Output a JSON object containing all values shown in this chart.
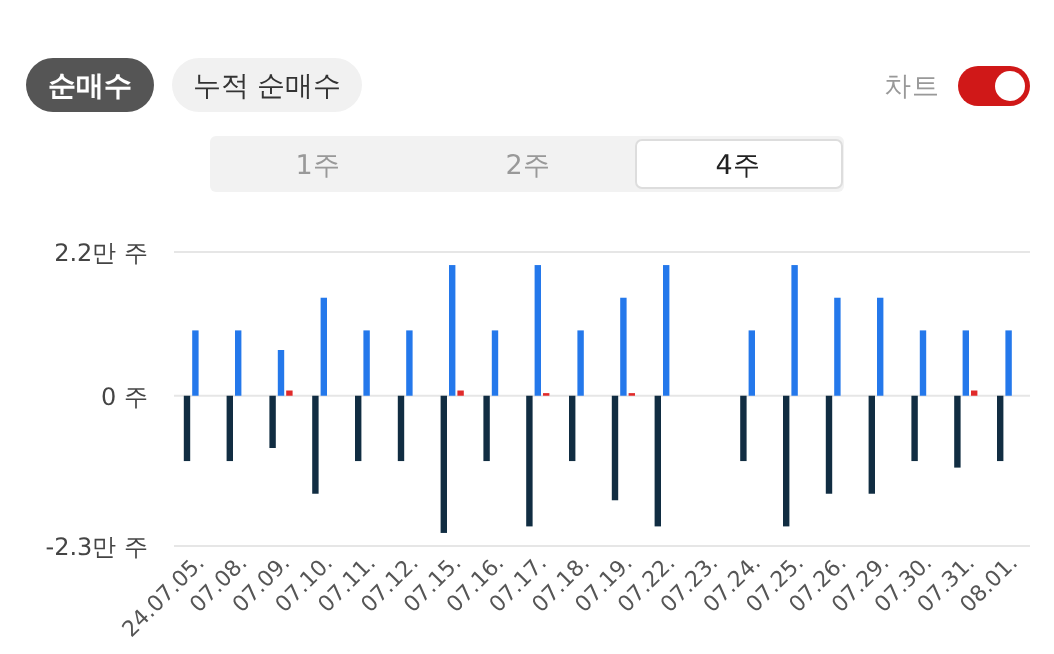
{
  "chart_data": {
    "type": "bar",
    "annotations": [
      "순매수",
      "누적 순매수",
      "차트",
      "1주",
      "2주",
      "4주"
    ],
    "categories": [
      "24.07.05.",
      "07.08.",
      "07.09.",
      "07.10.",
      "07.11.",
      "07.12.",
      "07.15.",
      "07.16.",
      "07.17.",
      "07.18.",
      "07.19.",
      "07.22.",
      "07.23.",
      "07.24.",
      "07.25.",
      "07.26.",
      "07.29.",
      "07.30.",
      "07.31.",
      "08.01."
    ],
    "series": [
      {
        "color": "#112d42",
        "values": [
          -1.0,
          -1.0,
          -0.8,
          -1.5,
          -1.0,
          -1.0,
          -2.1,
          -1.0,
          -2.0,
          -1.0,
          -1.6,
          -2.0,
          0,
          -1.0,
          -2.0,
          -1.5,
          -1.5,
          -1.0,
          -1.1,
          -1.0
        ]
      },
      {
        "color": "#2478eb",
        "values": [
          1.0,
          1.0,
          0.7,
          1.5,
          1.0,
          1.0,
          2.0,
          1.0,
          2.0,
          1.0,
          1.5,
          2.0,
          0,
          1.0,
          2.0,
          1.5,
          1.5,
          1.0,
          1.0,
          1.0
        ]
      },
      {
        "color": "#e02a2a",
        "values": [
          0,
          0,
          0.08,
          0,
          0,
          0,
          0.08,
          0,
          0.04,
          0,
          0.04,
          0,
          0,
          0,
          0,
          0,
          0,
          0,
          0.08,
          0
        ]
      }
    ],
    "ylim": [
      -2.3,
      2.2
    ],
    "yticks": [
      {
        "value": 2.2,
        "label": "2.2만 주"
      },
      {
        "value": 0,
        "label": "0 주"
      },
      {
        "value": -2.3,
        "label": "-2.3만 주"
      }
    ],
    "grid": "y"
  }
}
